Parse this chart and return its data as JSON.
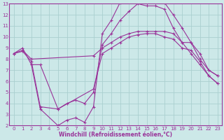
{
  "xlabel": "Windchill (Refroidissement éolien,°C)",
  "bg_color": "#cce8e8",
  "grid_color": "#aacfcf",
  "line_color": "#993399",
  "xlim": [
    -0.5,
    23.5
  ],
  "ylim": [
    2,
    13
  ],
  "xticks": [
    0,
    1,
    2,
    3,
    4,
    5,
    6,
    7,
    8,
    9,
    10,
    11,
    12,
    13,
    14,
    15,
    16,
    17,
    18,
    19,
    20,
    21,
    22,
    23
  ],
  "yticks": [
    2,
    3,
    4,
    5,
    6,
    7,
    8,
    9,
    10,
    11,
    12,
    13
  ],
  "lines": [
    {
      "x": [
        0,
        1,
        2,
        3,
        5,
        6,
        7,
        8,
        9,
        10,
        11,
        12,
        13,
        14,
        15,
        16,
        17,
        18,
        19,
        20,
        21,
        22,
        23
      ],
      "y": [
        8.5,
        9.0,
        7.5,
        3.5,
        2.0,
        2.5,
        2.7,
        2.3,
        3.7,
        10.3,
        11.5,
        13.1,
        13.3,
        13.3,
        13.1,
        13.2,
        13.1,
        12.0,
        10.8,
        9.5,
        8.0,
        7.0,
        6.5
      ]
    },
    {
      "x": [
        0,
        1,
        2,
        3,
        5,
        6,
        7,
        8,
        9,
        10,
        11,
        12,
        13,
        14,
        15,
        16,
        17,
        18,
        19,
        20,
        21,
        22,
        23
      ],
      "y": [
        8.5,
        8.7,
        7.8,
        3.7,
        3.5,
        4.0,
        4.3,
        4.0,
        5.0,
        9.3,
        10.3,
        11.5,
        12.3,
        13.0,
        12.8,
        12.8,
        12.5,
        10.8,
        9.5,
        8.5,
        7.5,
        6.5,
        5.8
      ]
    },
    {
      "x": [
        0,
        1,
        2,
        9,
        10,
        11,
        12,
        13,
        14,
        15,
        16,
        17,
        18,
        19,
        20,
        21,
        22,
        23
      ],
      "y": [
        8.5,
        8.8,
        8.0,
        8.3,
        9.0,
        9.5,
        10.0,
        10.3,
        10.5,
        10.5,
        10.5,
        10.5,
        10.3,
        9.5,
        9.5,
        8.5,
        7.0,
        6.5
      ]
    },
    {
      "x": [
        2,
        3,
        5,
        9,
        10,
        11,
        12,
        13,
        14,
        15,
        16,
        17,
        18,
        19,
        20,
        21,
        22,
        23
      ],
      "y": [
        7.5,
        7.5,
        3.5,
        5.3,
        8.5,
        9.0,
        9.5,
        10.0,
        10.2,
        10.3,
        10.3,
        10.0,
        9.8,
        9.0,
        8.8,
        7.8,
        6.5,
        5.8
      ]
    }
  ]
}
